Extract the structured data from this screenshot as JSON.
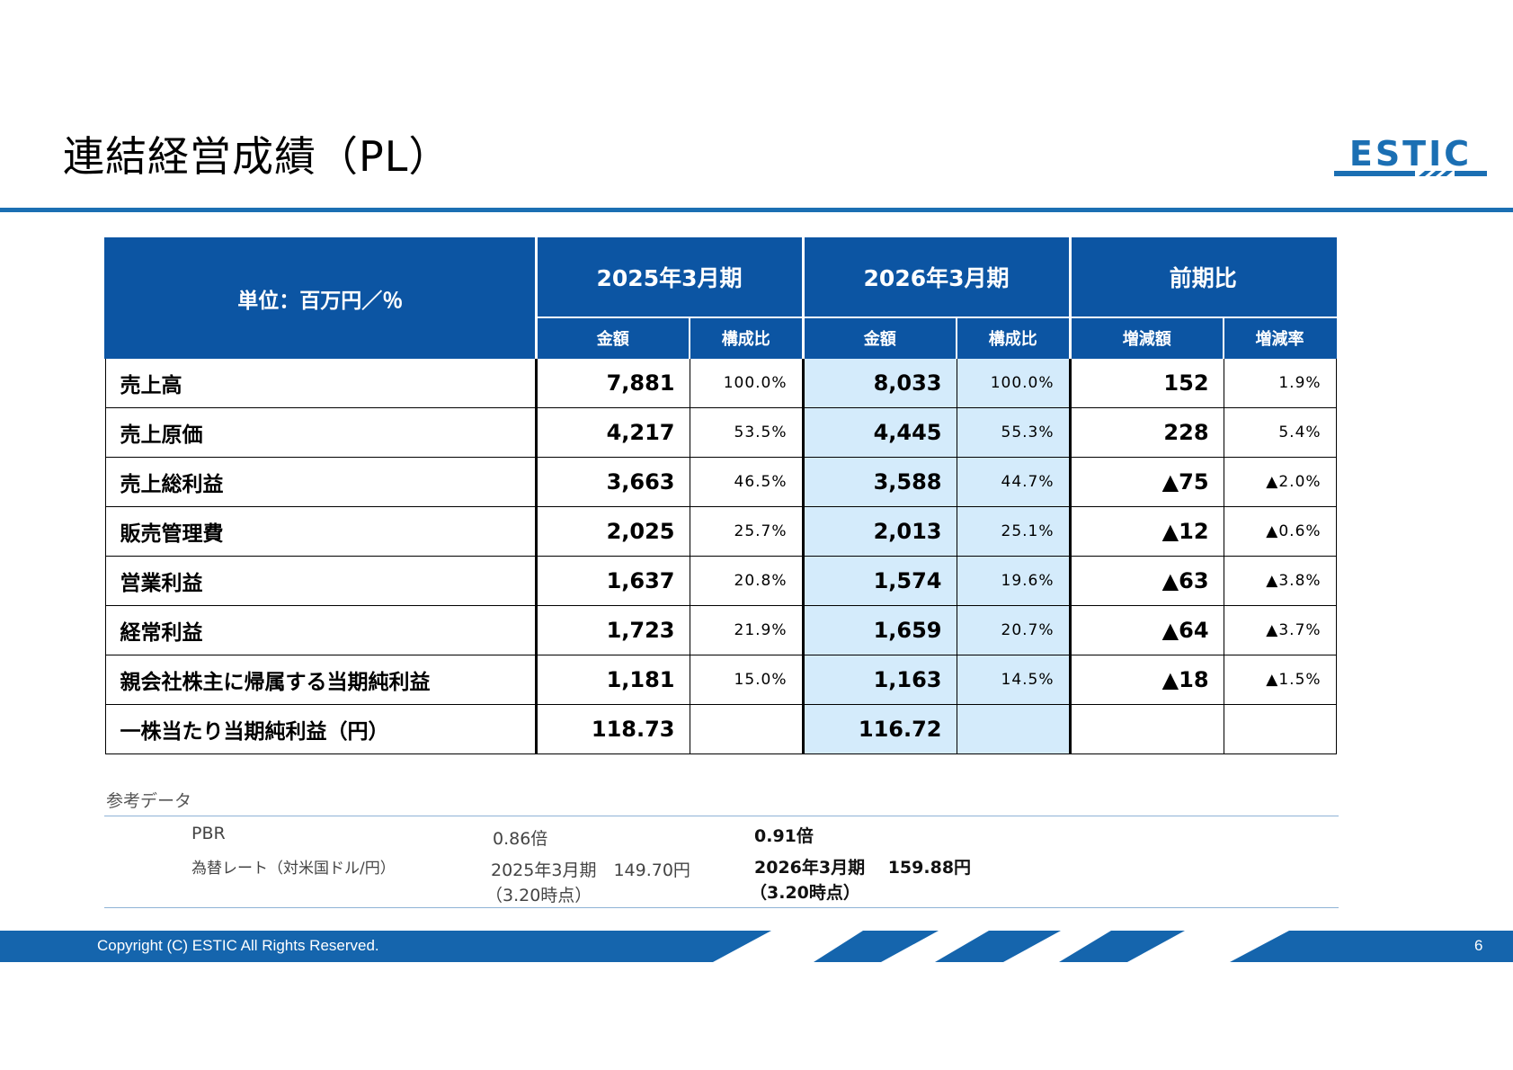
{
  "title": "連結経営成績（PL）",
  "logo_text": "ESTIC",
  "colors": {
    "brand_blue": "#0c55a3",
    "accent_blue": "#1b6fb3",
    "highlight": "#d4ebfb"
  },
  "table": {
    "unit_label": "単位：百万円／％",
    "groups": [
      "2025年3月期",
      "2026年3月期",
      "前期比"
    ],
    "subheaders": [
      "金額",
      "構成比",
      "金額",
      "構成比",
      "増減額",
      "増減率"
    ],
    "rows": [
      {
        "label": "売上高",
        "v2025": "7,881",
        "r2025": "100.0%",
        "v2026": "8,033",
        "r2026": "100.0%",
        "diff": "152",
        "rate": "1.9%"
      },
      {
        "label": "売上原価",
        "v2025": "4,217",
        "r2025": "53.5%",
        "v2026": "4,445",
        "r2026": "55.3%",
        "diff": "228",
        "rate": "5.4%"
      },
      {
        "label": "売上総利益",
        "v2025": "3,663",
        "r2025": "46.5%",
        "v2026": "3,588",
        "r2026": "44.7%",
        "diff": "▲75",
        "rate": "▲2.0%"
      },
      {
        "label": "販売管理費",
        "v2025": "2,025",
        "r2025": "25.7%",
        "v2026": "2,013",
        "r2026": "25.1%",
        "diff": "▲12",
        "rate": "▲0.6%"
      },
      {
        "label": "営業利益",
        "v2025": "1,637",
        "r2025": "20.8%",
        "v2026": "1,574",
        "r2026": "19.6%",
        "diff": "▲63",
        "rate": "▲3.8%"
      },
      {
        "label": "経常利益",
        "v2025": "1,723",
        "r2025": "21.9%",
        "v2026": "1,659",
        "r2026": "20.7%",
        "diff": "▲64",
        "rate": "▲3.7%"
      },
      {
        "label": "親会社株主に帰属する当期純利益",
        "v2025": "1,181",
        "r2025": "15.0%",
        "v2026": "1,163",
        "r2026": "14.5%",
        "diff": "▲18",
        "rate": "▲1.5%"
      },
      {
        "label": "一株当たり当期純利益（円）",
        "v2025": "118.73",
        "r2025": "",
        "v2026": "116.72",
        "r2026": "",
        "diff": "",
        "rate": ""
      }
    ]
  },
  "reference": {
    "title": "参考データ",
    "pbr_label": "PBR",
    "pbr_2025": "0.86倍",
    "pbr_2026": "0.91倍",
    "fx_label": "為替レート（対米国ドル/円）",
    "fx_2025_line1": "2025年3月期　149.70円",
    "fx_2025_line2": "（3.20時点）",
    "fx_2026_line1": "2026年3月期　 159.88円",
    "fx_2026_line2": "（3.20時点）"
  },
  "footer": {
    "copyright": "Copyright (C) ESTIC   All Rights Reserved.",
    "page": "6"
  }
}
